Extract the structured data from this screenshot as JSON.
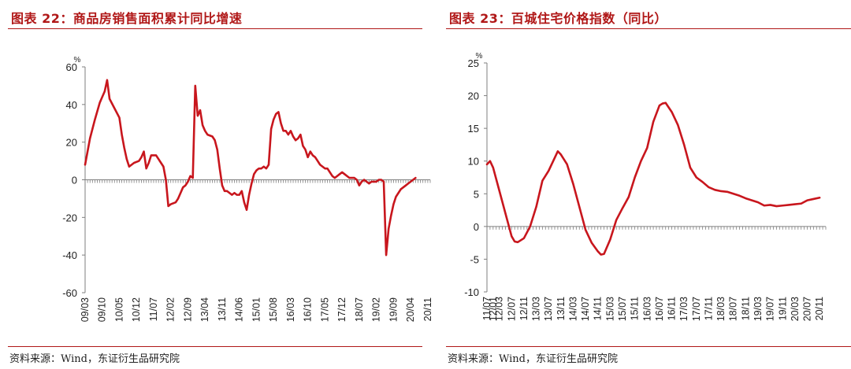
{
  "colors": {
    "accent": "#b01717",
    "line": "#c8161d",
    "axis": "#7f7f7f"
  },
  "left": {
    "title": "图表 22：商品房销售面积累计同比增速",
    "source": "资料来源：Wind，东证衍生品研究院"
  },
  "right": {
    "title": "图表 23：百城住宅价格指数（同比）",
    "source": "资料来源：Wind，东证衍生品研究院"
  },
  "chart_data": [
    {
      "type": "line",
      "ylabel": "%",
      "ylim": [
        -60,
        60
      ],
      "yticks": [
        -60,
        -40,
        -20,
        0,
        20,
        40,
        60
      ],
      "xlabel": "",
      "x_tick_labels": [
        "09/03",
        "09/10",
        "10/05",
        "10/12",
        "11/07",
        "12/02",
        "12/09",
        "13/04",
        "13/11",
        "14/06",
        "15/01",
        "15/08",
        "16/03",
        "16/10",
        "17/05",
        "17/12",
        "18/07",
        "19/02",
        "19/09",
        "20/04",
        "20/11"
      ],
      "x_tick_positions": [
        0,
        7,
        14,
        21,
        28,
        35,
        42,
        49,
        56,
        63,
        70,
        77,
        84,
        91,
        98,
        105,
        112,
        119,
        126,
        133,
        140
      ],
      "x_range": [
        0,
        141
      ],
      "series": [
        {
          "points": [
            [
              0,
              8
            ],
            [
              2,
              22
            ],
            [
              4,
              32
            ],
            [
              6,
              41
            ],
            [
              7,
              44
            ],
            [
              8,
              47
            ],
            [
              9,
              53
            ],
            [
              10,
              43
            ],
            [
              12,
              38
            ],
            [
              14,
              33
            ],
            [
              15,
              24
            ],
            [
              16,
              17
            ],
            [
              17,
              11
            ],
            [
              18,
              7
            ],
            [
              19,
              8
            ],
            [
              20,
              9
            ],
            [
              22,
              10
            ],
            [
              23,
              12
            ],
            [
              24,
              15
            ],
            [
              25,
              6
            ],
            [
              26,
              9
            ],
            [
              27,
              13
            ],
            [
              29,
              13
            ],
            [
              30,
              11
            ],
            [
              31,
              9
            ],
            [
              32,
              7
            ],
            [
              33,
              0
            ],
            [
              34,
              -14
            ],
            [
              35,
              -13
            ],
            [
              37,
              -12
            ],
            [
              38,
              -10
            ],
            [
              39,
              -7
            ],
            [
              40,
              -4
            ],
            [
              41,
              -3
            ],
            [
              42,
              -1
            ],
            [
              43,
              2
            ],
            [
              44,
              1
            ],
            [
              45,
              50
            ],
            [
              46,
              34
            ],
            [
              47,
              37
            ],
            [
              48,
              29
            ],
            [
              49,
              26
            ],
            [
              50,
              24
            ],
            [
              52,
              23
            ],
            [
              53,
              21
            ],
            [
              54,
              16
            ],
            [
              55,
              6
            ],
            [
              56,
              -3
            ],
            [
              57,
              -6
            ],
            [
              58,
              -6
            ],
            [
              59,
              -7
            ],
            [
              60,
              -8
            ],
            [
              61,
              -7
            ],
            [
              62,
              -8
            ],
            [
              63,
              -8
            ],
            [
              64,
              -6
            ],
            [
              65,
              -12
            ],
            [
              66,
              -16
            ],
            [
              67,
              -8
            ],
            [
              68,
              -2
            ],
            [
              69,
              3
            ],
            [
              70,
              5
            ],
            [
              71,
              6
            ],
            [
              72,
              6
            ],
            [
              73,
              7
            ],
            [
              74,
              6
            ],
            [
              75,
              8
            ],
            [
              76,
              27
            ],
            [
              77,
              32
            ],
            [
              78,
              35
            ],
            [
              79,
              36
            ],
            [
              80,
              30
            ],
            [
              81,
              26
            ],
            [
              82,
              26
            ],
            [
              83,
              24
            ],
            [
              84,
              26
            ],
            [
              85,
              23
            ],
            [
              86,
              21
            ],
            [
              87,
              22
            ],
            [
              88,
              24
            ],
            [
              89,
              18
            ],
            [
              90,
              16
            ],
            [
              91,
              12
            ],
            [
              92,
              15
            ],
            [
              93,
              13
            ],
            [
              94,
              12
            ],
            [
              95,
              10
            ],
            [
              96,
              8
            ],
            [
              97,
              7
            ],
            [
              98,
              6
            ],
            [
              99,
              6
            ],
            [
              100,
              4
            ],
            [
              101,
              2
            ],
            [
              102,
              1
            ],
            [
              103,
              2
            ],
            [
              104,
              3
            ],
            [
              105,
              4
            ],
            [
              106,
              3
            ],
            [
              107,
              2
            ],
            [
              108,
              1
            ],
            [
              109,
              1
            ],
            [
              110,
              1
            ],
            [
              111,
              0
            ],
            [
              112,
              -3
            ],
            [
              113,
              -1
            ],
            [
              114,
              0
            ],
            [
              115,
              -1
            ],
            [
              116,
              -2
            ],
            [
              117,
              -1
            ],
            [
              118,
              -1
            ],
            [
              119,
              -1
            ],
            [
              120,
              0
            ],
            [
              121,
              0
            ],
            [
              122,
              -1
            ],
            [
              123,
              -40
            ],
            [
              124,
              -26
            ],
            [
              125,
              -19
            ],
            [
              126,
              -13
            ],
            [
              127,
              -9
            ],
            [
              128,
              -7
            ],
            [
              129,
              -5
            ],
            [
              130,
              -4
            ],
            [
              131,
              -3
            ],
            [
              132,
              -2
            ],
            [
              133,
              -1
            ],
            [
              134,
              0
            ],
            [
              135,
              1
            ]
          ]
        }
      ]
    },
    {
      "type": "line",
      "ylabel": "%",
      "ylim": [
        -10,
        25
      ],
      "yticks": [
        -10,
        -5,
        0,
        5,
        10,
        15,
        20,
        25
      ],
      "xlabel": "",
      "x_tick_labels": [
        "11/07",
        "12/01",
        "12/03",
        "12/07",
        "12/11",
        "13/03",
        "13/07",
        "13/11",
        "14/03",
        "14/07",
        "14/11",
        "15/03",
        "15/07",
        "15/11",
        "16/03",
        "16/07",
        "16/11",
        "17/03",
        "17/07",
        "17/11",
        "18/03",
        "18/07",
        "18/11",
        "19/03",
        "19/07",
        "19/11",
        "20/03",
        "20/07",
        "20/11"
      ],
      "x_tick_positions": [
        0,
        2,
        4,
        8,
        12,
        16,
        20,
        24,
        28,
        32,
        36,
        40,
        44,
        48,
        52,
        56,
        60,
        64,
        68,
        72,
        76,
        80,
        84,
        88,
        92,
        96,
        100,
        104,
        108
      ],
      "x_range": [
        0,
        110
      ],
      "series": [
        {
          "points": [
            [
              0,
              9.5
            ],
            [
              1,
              10
            ],
            [
              2,
              9
            ],
            [
              4,
              5.5
            ],
            [
              6,
              2
            ],
            [
              8,
              -1.5
            ],
            [
              9,
              -2.3
            ],
            [
              10,
              -2.4
            ],
            [
              12,
              -1.8
            ],
            [
              14,
              0
            ],
            [
              16,
              3
            ],
            [
              18,
              7
            ],
            [
              20,
              8.5
            ],
            [
              22,
              10.5
            ],
            [
              23,
              11.5
            ],
            [
              24,
              11
            ],
            [
              26,
              9.5
            ],
            [
              28,
              6.5
            ],
            [
              30,
              3
            ],
            [
              32,
              -0.5
            ],
            [
              34,
              -2.5
            ],
            [
              36,
              -3.8
            ],
            [
              37,
              -4.3
            ],
            [
              38,
              -4.2
            ],
            [
              40,
              -2
            ],
            [
              42,
              1
            ],
            [
              44,
              2.8
            ],
            [
              46,
              4.5
            ],
            [
              48,
              7.5
            ],
            [
              50,
              10
            ],
            [
              52,
              12
            ],
            [
              54,
              16
            ],
            [
              56,
              18.5
            ],
            [
              57,
              18.8
            ],
            [
              58,
              18.9
            ],
            [
              60,
              17.5
            ],
            [
              62,
              15.5
            ],
            [
              64,
              12.5
            ],
            [
              66,
              9
            ],
            [
              68,
              7.5
            ],
            [
              70,
              6.8
            ],
            [
              72,
              6
            ],
            [
              74,
              5.6
            ],
            [
              76,
              5.4
            ],
            [
              78,
              5.3
            ],
            [
              80,
              5
            ],
            [
              82,
              4.7
            ],
            [
              84,
              4.3
            ],
            [
              86,
              4
            ],
            [
              88,
              3.7
            ],
            [
              90,
              3.2
            ],
            [
              92,
              3.3
            ],
            [
              94,
              3.1
            ],
            [
              96,
              3.2
            ],
            [
              98,
              3.3
            ],
            [
              100,
              3.4
            ],
            [
              102,
              3.5
            ],
            [
              104,
              4
            ],
            [
              106,
              4.2
            ],
            [
              108,
              4.4
            ]
          ]
        }
      ]
    }
  ]
}
